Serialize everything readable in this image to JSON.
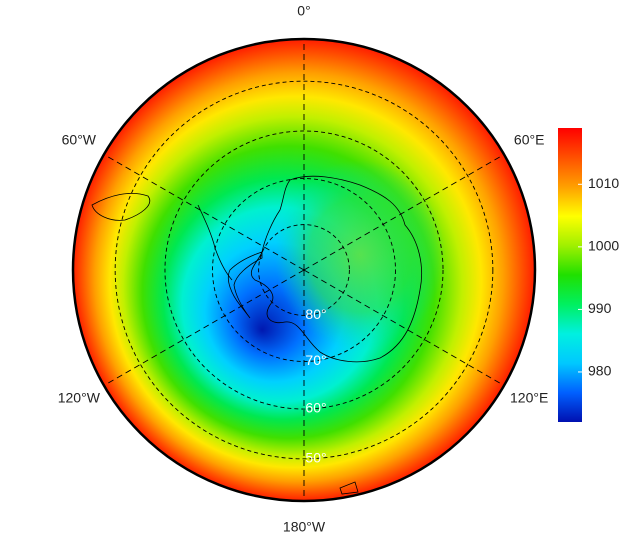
{
  "map": {
    "projection": "south-polar-stereographic",
    "boundary_lat": -42,
    "meridians": [
      {
        "value": 0,
        "label": "0°"
      },
      {
        "value": 60,
        "label": "60°E"
      },
      {
        "value": 120,
        "label": "120°E"
      },
      {
        "value": 180,
        "label": "180°W"
      },
      {
        "value": -120,
        "label": "120°W"
      },
      {
        "value": -60,
        "label": "60°W"
      }
    ],
    "parallels": [
      {
        "value": -80,
        "label": "80°"
      },
      {
        "value": -70,
        "label": "70°"
      },
      {
        "value": -60,
        "label": "60°"
      },
      {
        "value": -50,
        "label": "50°"
      }
    ],
    "colorbar": {
      "lim": [
        972,
        1019
      ],
      "ticks": [
        980,
        990,
        1000,
        1010
      ],
      "colors": [
        "#0010b0",
        "#0060ff",
        "#00c8ff",
        "#00f0e0",
        "#00f060",
        "#20e000",
        "#a0f000",
        "#ffff00",
        "#ffa000",
        "#ff5000",
        "#ff0000"
      ]
    }
  }
}
